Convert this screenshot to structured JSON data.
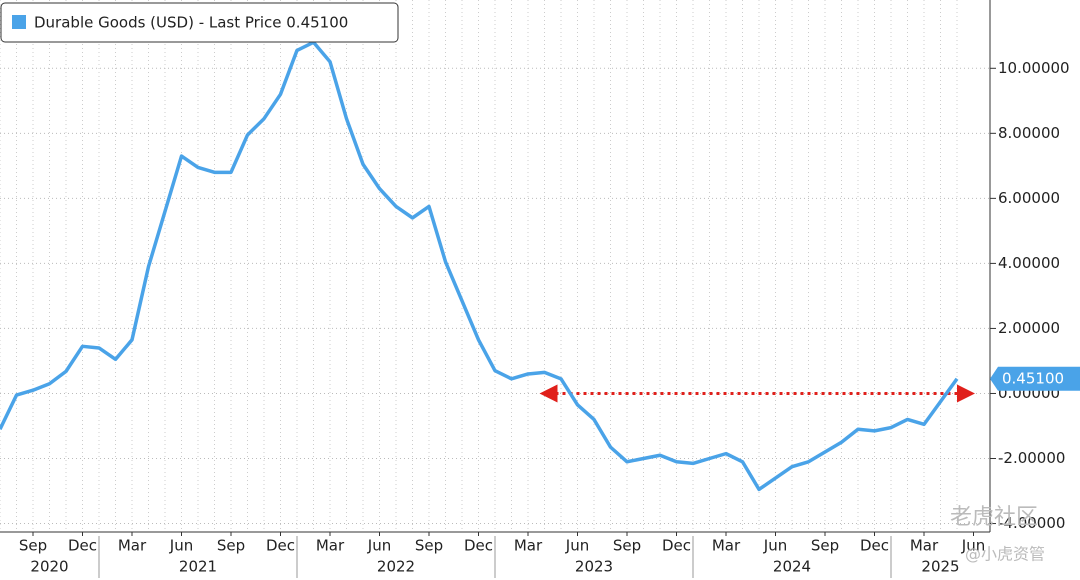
{
  "chart_data": {
    "type": "line",
    "x": [
      "2020-07",
      "2020-08",
      "2020-09",
      "2020-10",
      "2020-11",
      "2020-12",
      "2021-01",
      "2021-02",
      "2021-03",
      "2021-04",
      "2021-05",
      "2021-06",
      "2021-07",
      "2021-08",
      "2021-09",
      "2021-10",
      "2021-11",
      "2021-12",
      "2022-01",
      "2022-02",
      "2022-03",
      "2022-04",
      "2022-05",
      "2022-06",
      "2022-07",
      "2022-08",
      "2022-09",
      "2022-10",
      "2022-11",
      "2022-12",
      "2023-01",
      "2023-02",
      "2023-03",
      "2023-04",
      "2023-05",
      "2023-06",
      "2023-07",
      "2023-08",
      "2023-09",
      "2023-10",
      "2023-11",
      "2023-12",
      "2024-01",
      "2024-02",
      "2024-03",
      "2024-04",
      "2024-05",
      "2024-06",
      "2024-07",
      "2024-08",
      "2024-09",
      "2024-10",
      "2024-11",
      "2024-12",
      "2025-01",
      "2025-02",
      "2025-03",
      "2025-04",
      "2025-05"
    ],
    "series": [
      {
        "name": "Durable Goods (USD) - Last Price 0.45100",
        "color": "#4aa3e8",
        "values": [
          -1.1,
          -0.05,
          0.1,
          0.3,
          0.68,
          1.45,
          1.4,
          1.05,
          1.65,
          3.9,
          5.6,
          7.3,
          6.95,
          6.8,
          6.8,
          7.95,
          8.45,
          9.2,
          10.55,
          10.8,
          10.2,
          8.45,
          7.05,
          6.3,
          5.75,
          5.4,
          5.75,
          4.05,
          2.85,
          1.65,
          0.7,
          0.45,
          0.6,
          0.65,
          0.45,
          -0.35,
          -0.8,
          -1.65,
          -2.1,
          -2.0,
          -1.9,
          -2.1,
          -2.15,
          -2.0,
          -1.85,
          -2.1,
          -2.95,
          -2.6,
          -2.25,
          -2.1,
          -1.8,
          -1.5,
          -1.1,
          -1.15,
          -1.05,
          -0.8,
          -0.95,
          -0.25,
          0.451
        ]
      }
    ],
    "last_value": {
      "value": 0.451,
      "label": "0.45100"
    },
    "xlim": [
      "2020-07",
      "2025-07"
    ],
    "xticks": [
      {
        "value": "2020-09",
        "label": "Sep"
      },
      {
        "value": "2020-12",
        "label": "Dec"
      },
      {
        "value": "2021-03",
        "label": "Mar"
      },
      {
        "value": "2021-06",
        "label": "Jun"
      },
      {
        "value": "2021-09",
        "label": "Sep"
      },
      {
        "value": "2021-12",
        "label": "Dec"
      },
      {
        "value": "2022-03",
        "label": "Mar"
      },
      {
        "value": "2022-06",
        "label": "Jun"
      },
      {
        "value": "2022-09",
        "label": "Sep"
      },
      {
        "value": "2022-12",
        "label": "Dec"
      },
      {
        "value": "2023-03",
        "label": "Mar"
      },
      {
        "value": "2023-06",
        "label": "Jun"
      },
      {
        "value": "2023-09",
        "label": "Sep"
      },
      {
        "value": "2023-12",
        "label": "Dec"
      },
      {
        "value": "2024-03",
        "label": "Mar"
      },
      {
        "value": "2024-06",
        "label": "Jun"
      },
      {
        "value": "2024-09",
        "label": "Sep"
      },
      {
        "value": "2024-12",
        "label": "Dec"
      },
      {
        "value": "2025-03",
        "label": "Mar"
      },
      {
        "value": "2025-06",
        "label": "Jun"
      }
    ],
    "year_labels": [
      "2020",
      "2021",
      "2022",
      "2023",
      "2024",
      "2025"
    ],
    "ylim": [
      -4.26,
      12.1
    ],
    "yticks": [
      {
        "value": -4,
        "label": "-4.00000"
      },
      {
        "value": -2,
        "label": "-2.00000"
      },
      {
        "value": 0,
        "label": "0.00000"
      },
      {
        "value": 2,
        "label": "2.00000"
      },
      {
        "value": 4,
        "label": "4.00000"
      },
      {
        "value": 6,
        "label": "6.00000"
      },
      {
        "value": 8,
        "label": "8.00000"
      },
      {
        "value": 10,
        "label": "10.00000"
      }
    ],
    "grid": true,
    "reference_line": {
      "value": 0,
      "from": "2023-04",
      "color": "#e0201b"
    },
    "watermark": [
      "老虎社区",
      "@小虎资管"
    ]
  }
}
